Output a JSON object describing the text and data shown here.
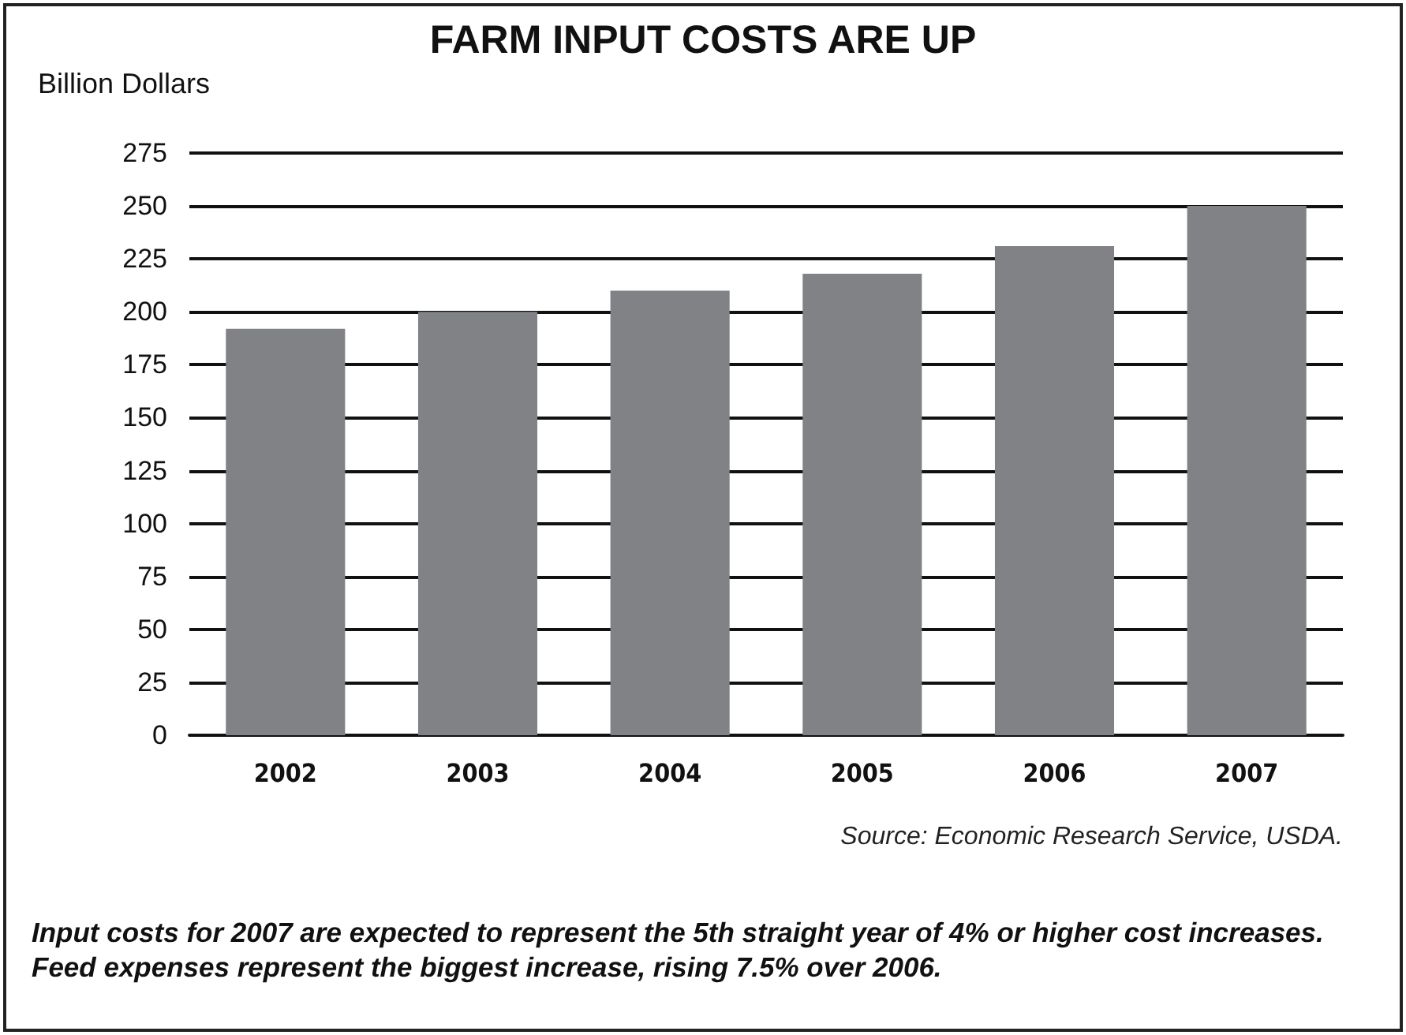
{
  "chart_data": {
    "type": "bar",
    "title": "FARM INPUT COSTS ARE UP",
    "ylabel": "Billion Dollars",
    "categories": [
      "2002",
      "2003",
      "2004",
      "2005",
      "2006",
      "2007"
    ],
    "values": [
      192,
      200,
      210,
      218,
      231,
      250
    ],
    "color": "#818285",
    "ylim": [
      0,
      275
    ],
    "yticks": [
      0,
      25,
      50,
      75,
      100,
      125,
      150,
      175,
      200,
      225,
      250,
      275
    ],
    "grid": "y",
    "annotations": [
      "Source: Economic Research Service, USDA.",
      "Input costs for 2007 are expected to represent the 5th straight year of 4% or higher cost increases. Feed expenses represent the biggest increase, rising 7.5% over 2006."
    ]
  }
}
